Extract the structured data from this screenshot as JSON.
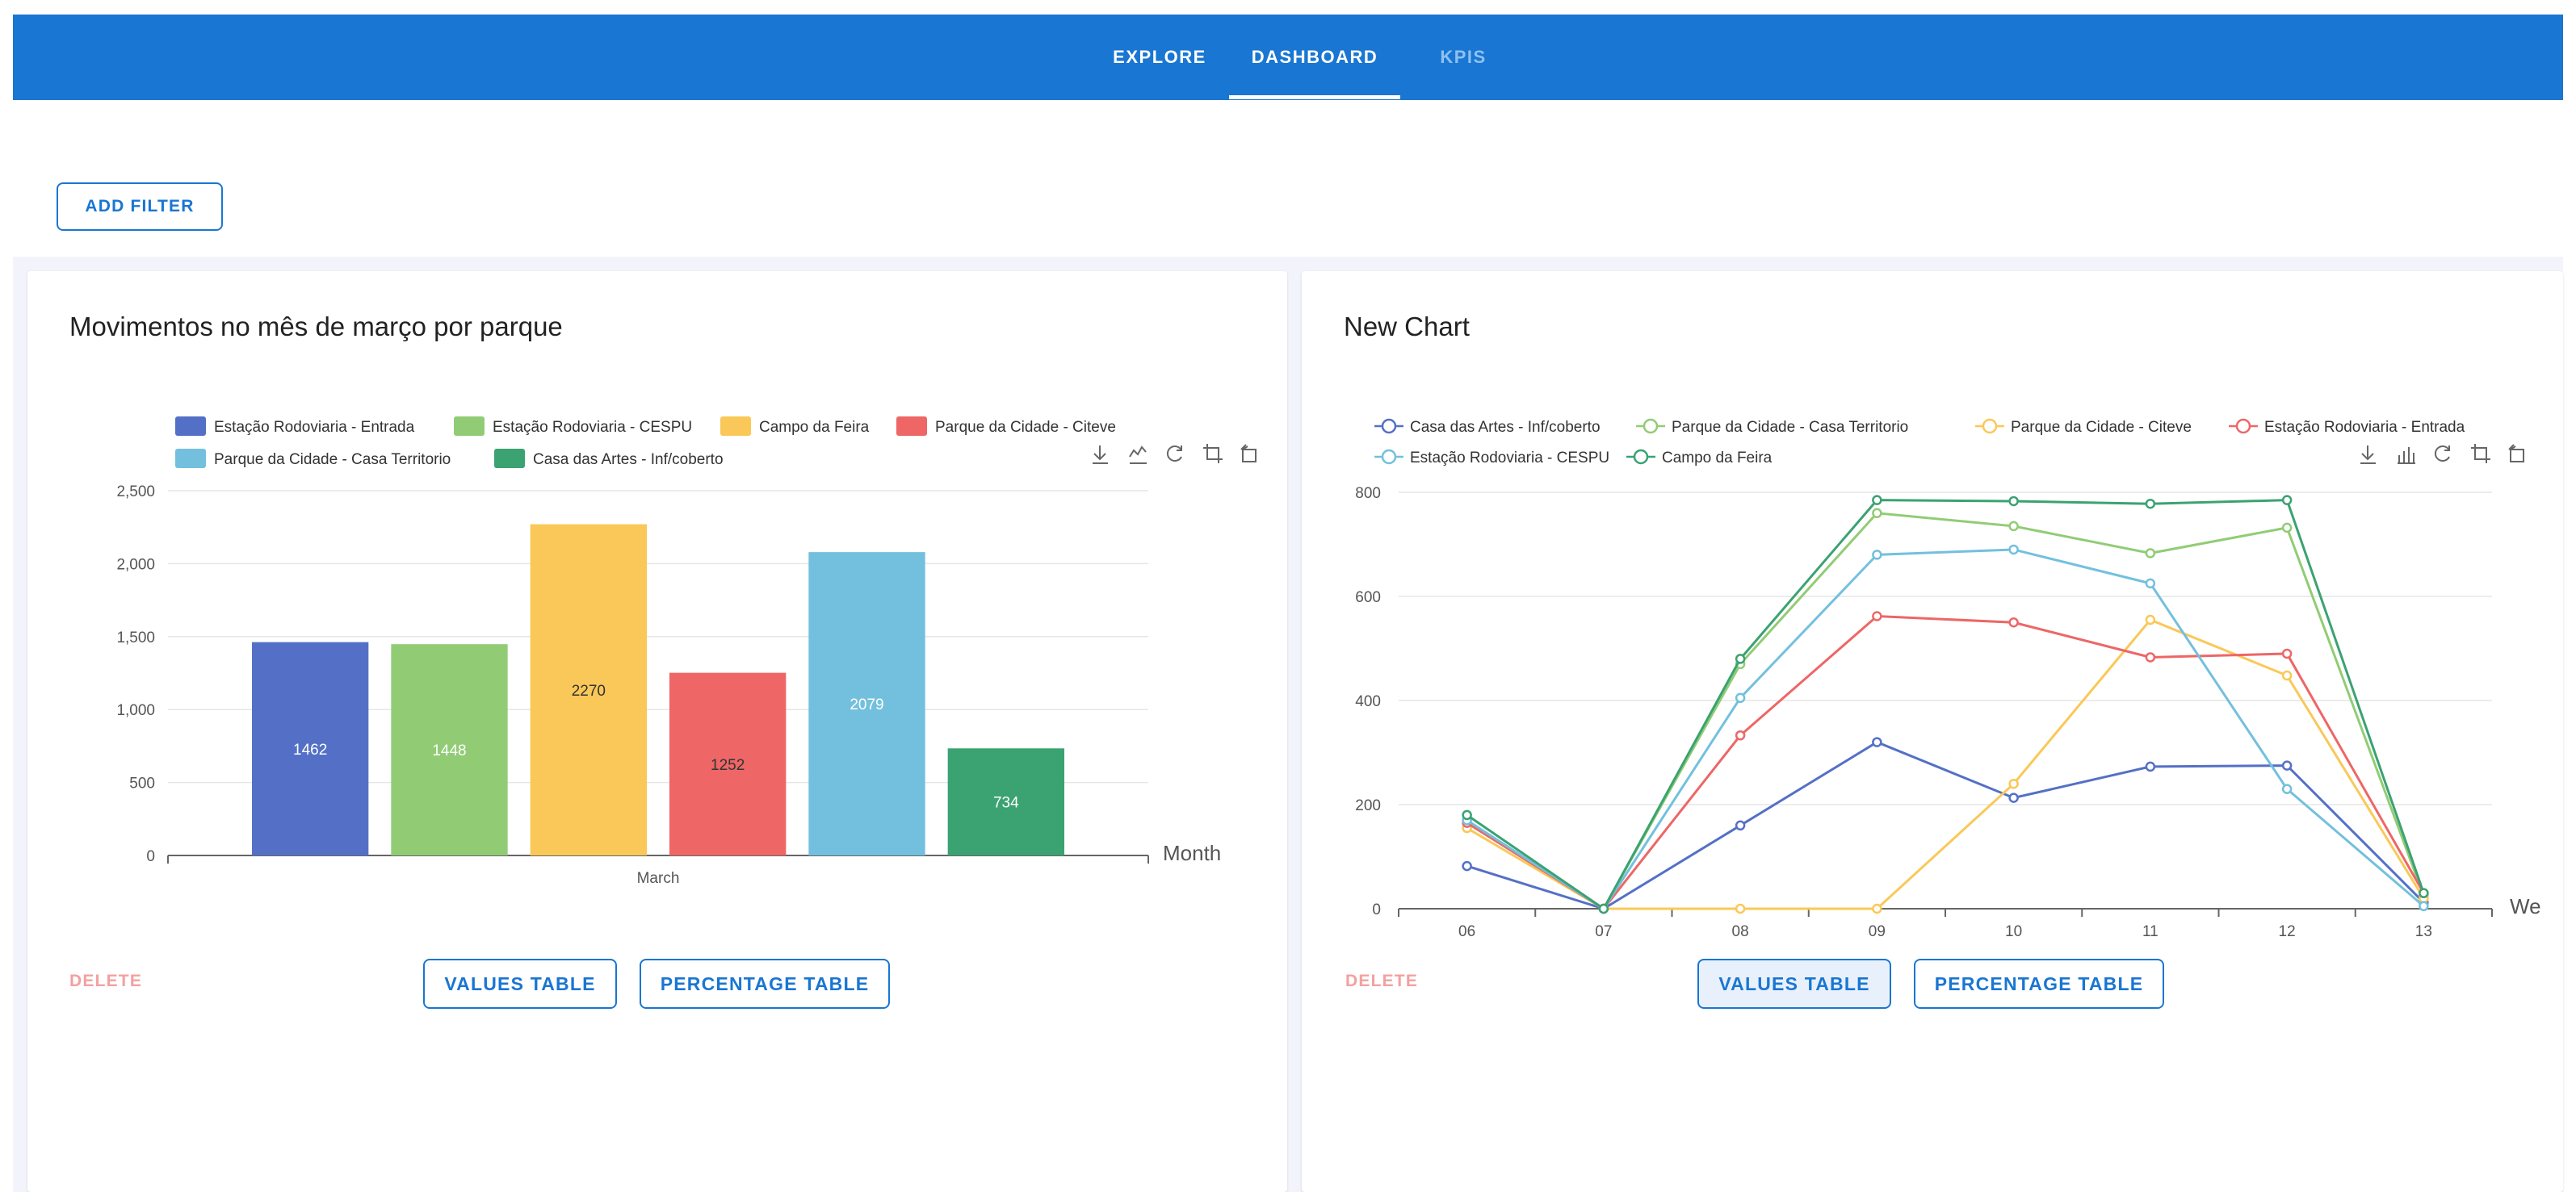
{
  "nav": {
    "tabs": [
      {
        "label": "EXPLORE"
      },
      {
        "label": "DASHBOARD"
      },
      {
        "label": "KPIS"
      }
    ],
    "active_tab": "DASHBOARD",
    "color": "#1976d2"
  },
  "toolbar": {
    "add_filter_label": "ADD FILTER"
  },
  "cards": [
    {
      "title": "Movimentos no mês de março por parque",
      "delete_label": "DELETE",
      "values_table_label": "VALUES TABLE",
      "percentage_table_label": "PERCENTAGE TABLE",
      "chart_toolbox": [
        "download-icon",
        "line-chart-icon",
        "refresh-icon",
        "crop-icon",
        "restore-icon"
      ]
    },
    {
      "title": "New Chart",
      "delete_label": "DELETE",
      "values_table_label": "VALUES TABLE",
      "percentage_table_label": "PERCENTAGE TABLE",
      "chart_toolbox": [
        "download-icon",
        "bar-chart-icon",
        "refresh-icon",
        "crop-icon",
        "restore-icon"
      ]
    }
  ],
  "chart_data": [
    {
      "type": "bar",
      "categories": [
        "March"
      ],
      "xlabel": "Month",
      "ylim": [
        0,
        2500
      ],
      "yticks": [
        "0",
        "500",
        "1,000",
        "1,500",
        "2,000",
        "2,500"
      ],
      "grid": true,
      "legend_position": "top",
      "series": [
        {
          "name": "Estação Rodoviaria - Entrada",
          "color": "#5470c6",
          "values": [
            1462
          ]
        },
        {
          "name": "Estação Rodoviaria - CESPU",
          "color": "#91cc75",
          "values": [
            1448
          ]
        },
        {
          "name": "Campo da Feira",
          "color": "#fac858",
          "values": [
            2270
          ]
        },
        {
          "name": "Parque da Cidade - Citeve",
          "color": "#ee6666",
          "values": [
            1252
          ]
        },
        {
          "name": "Parque da Cidade - Casa Territorio",
          "color": "#73c0de",
          "values": [
            2079
          ]
        },
        {
          "name": "Casa das Artes -  Inf/coberto",
          "color": "#3ba272",
          "values": [
            734
          ]
        }
      ]
    },
    {
      "type": "line",
      "x": [
        "06",
        "07",
        "08",
        "09",
        "10",
        "11",
        "12",
        "13"
      ],
      "xlabel": "We",
      "ylim": [
        0,
        800
      ],
      "yticks": [
        "0",
        "200",
        "400",
        "600",
        "800"
      ],
      "grid": true,
      "legend_position": "top",
      "series": [
        {
          "name": "Casa das Artes -  Inf/coberto",
          "color": "#5470c6",
          "values": [
            82,
            0,
            160,
            320,
            213,
            273,
            275,
            12
          ]
        },
        {
          "name": "Parque da Cidade - Casa Territorio",
          "color": "#91cc75",
          "values": [
            165,
            0,
            470,
            760,
            735,
            683,
            732,
            25
          ]
        },
        {
          "name": "Parque da Cidade - Citeve",
          "color": "#fac858",
          "values": [
            155,
            0,
            0,
            0,
            240,
            555,
            448,
            20
          ]
        },
        {
          "name": "Estação Rodoviaria - Entrada",
          "color": "#ee6666",
          "values": [
            165,
            0,
            333,
            562,
            550,
            483,
            490,
            30
          ]
        },
        {
          "name": "Estação Rodoviaria - CESPU",
          "color": "#73c0de",
          "values": [
            170,
            0,
            405,
            680,
            690,
            625,
            230,
            5
          ]
        },
        {
          "name": "Campo da Feira",
          "color": "#3ba272",
          "values": [
            180,
            0,
            480,
            785,
            783,
            778,
            785,
            30
          ]
        }
      ]
    }
  ]
}
